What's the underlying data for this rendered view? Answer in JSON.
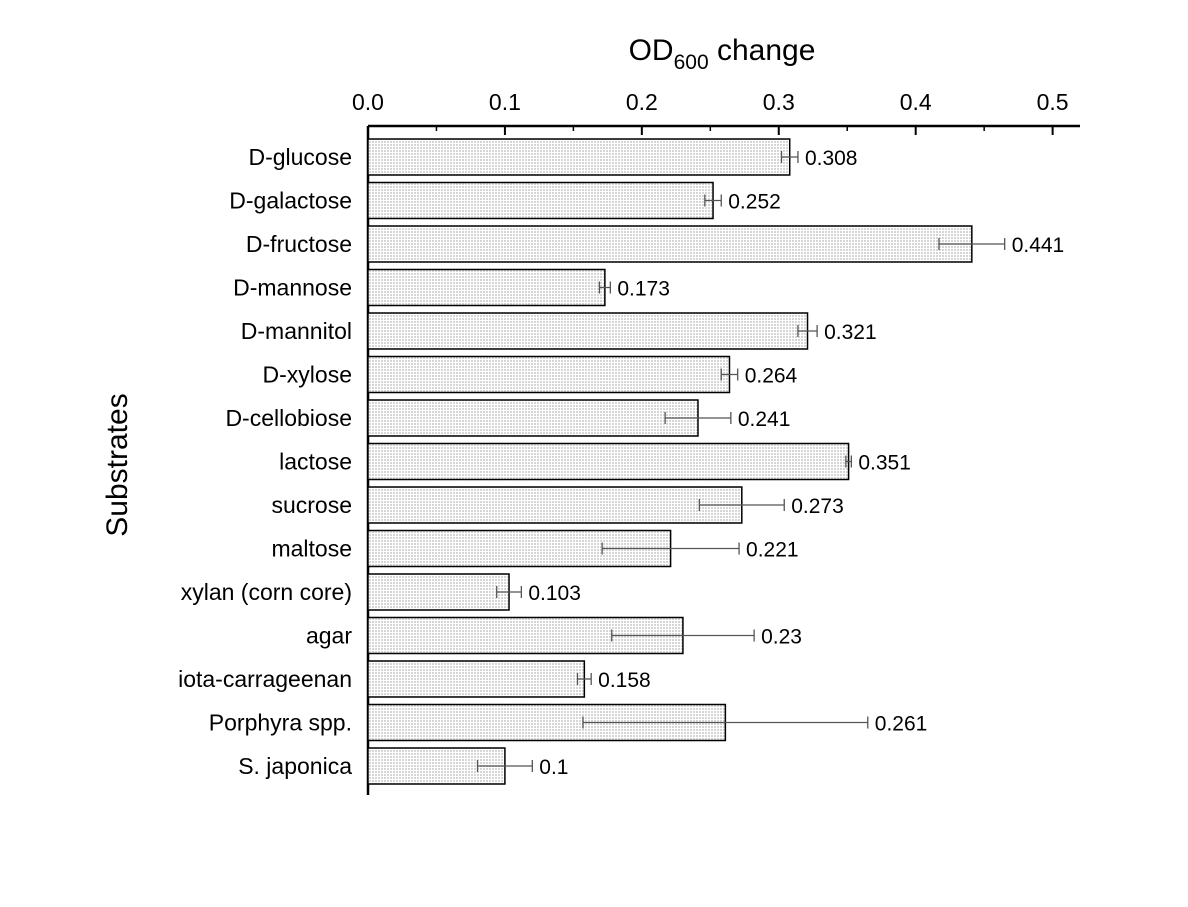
{
  "chart_data": {
    "type": "bar",
    "orientation": "horizontal",
    "title": "",
    "xlabel": {
      "main": "OD",
      "subscript": "600",
      "suffix": " change"
    },
    "ylabel": "Substrates",
    "xlim": [
      0,
      0.52
    ],
    "xticks": [
      0.0,
      0.1,
      0.2,
      0.3,
      0.4,
      0.5
    ],
    "xtick_labels": [
      "0.0",
      "0.1",
      "0.2",
      "0.3",
      "0.4",
      "0.5"
    ],
    "x_axis_position": "top",
    "grid": false,
    "legend": "none",
    "bar_fill": "#ececec",
    "bar_pattern": "dotted",
    "bar_stroke": "#000000",
    "error_bar_color": "#555555",
    "categories": [
      "D-glucose",
      "D-galactose",
      "D-fructose",
      "D-mannose",
      "D-mannitol",
      "D-xylose",
      "D-cellobiose",
      "lactose",
      "sucrose",
      "maltose",
      "xylan (corn core)",
      "agar",
      "iota-carrageenan",
      "Porphyra spp.",
      "S. japonica"
    ],
    "values": [
      0.308,
      0.252,
      0.441,
      0.173,
      0.321,
      0.264,
      0.241,
      0.351,
      0.273,
      0.221,
      0.103,
      0.23,
      0.158,
      0.261,
      0.1
    ],
    "value_labels": [
      "0.308",
      "0.252",
      "0.441",
      "0.173",
      "0.321",
      "0.264",
      "0.241",
      "0.351",
      "0.273",
      "0.221",
      "0.103",
      "0.23",
      "0.158",
      "0.261",
      "0.1"
    ],
    "errors": [
      0.006,
      0.006,
      0.024,
      0.004,
      0.007,
      0.006,
      0.024,
      0.002,
      0.031,
      0.05,
      0.009,
      0.052,
      0.005,
      0.104,
      0.02
    ]
  }
}
